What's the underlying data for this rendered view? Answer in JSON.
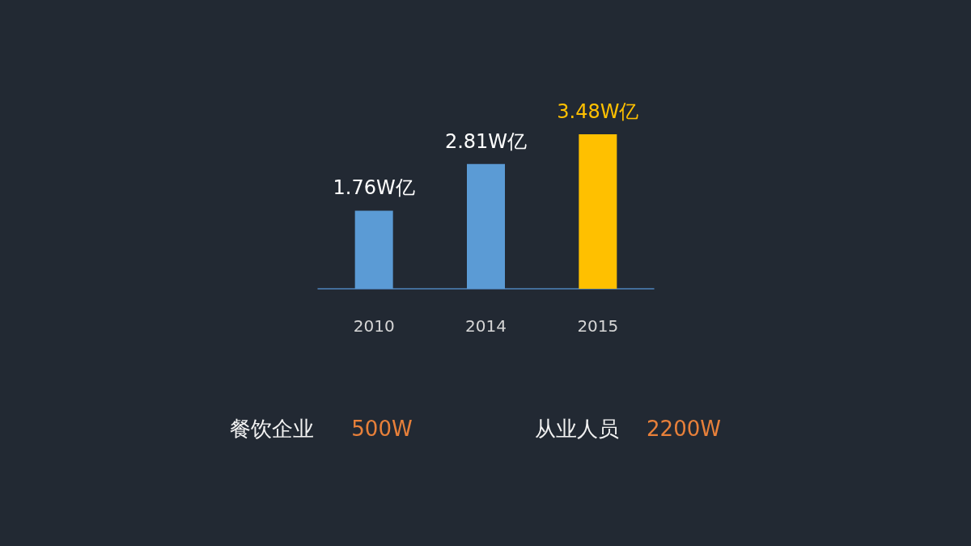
{
  "chart_data": {
    "type": "bar",
    "categories": [
      "2010",
      "2014",
      "2015"
    ],
    "values": [
      1.76,
      2.81,
      3.48
    ],
    "colors": [
      "#5b9bd5",
      "#5b9bd5",
      "#ffc000"
    ],
    "value_labels": [
      "1.76W亿",
      "2.81W亿",
      "3.48W亿"
    ],
    "annotations": [
      "餐饮企业",
      "500W",
      "从业人员",
      "2200W"
    ]
  }
}
